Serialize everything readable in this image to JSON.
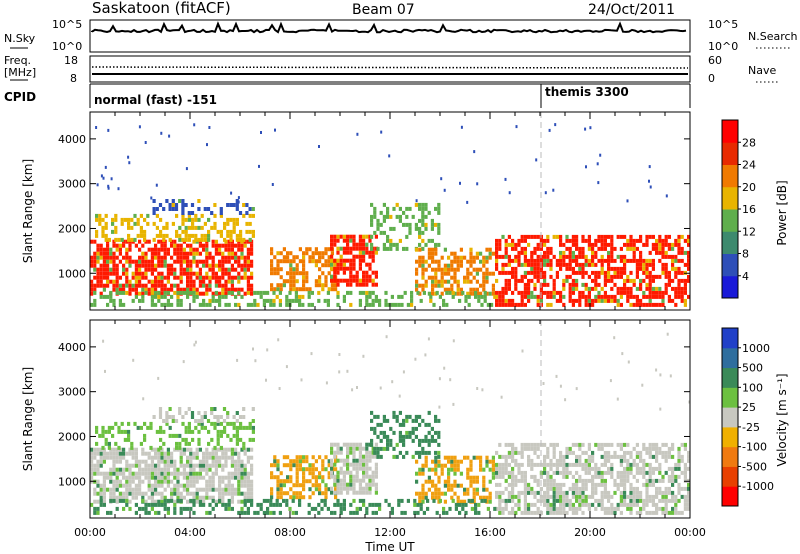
{
  "header": {
    "station": "Saskatoon (fitACF)",
    "beam": "Beam 07",
    "date": "24/Oct/2011"
  },
  "status_panels": {
    "nsky": {
      "label": "N.Sky",
      "ticks": [
        "10^5",
        "10^0"
      ],
      "right_ticks": [
        "10^5",
        "10^0"
      ],
      "right_label": "N.Search"
    },
    "freq": {
      "label_line1": "Freq.",
      "label_line2": "[MHz]",
      "ticks": [
        "18",
        "8"
      ],
      "right_ticks": [
        "60",
        "0"
      ],
      "right_label": "Nave"
    },
    "cpid": {
      "label": "CPID",
      "modes": [
        "normal (fast) -151",
        "themis 3300"
      ]
    }
  },
  "chart_data": [
    {
      "type": "heatmap",
      "quantity": "Power",
      "ylabel": "Slant Range [km]",
      "xlabel": "",
      "ylim": [
        180,
        4600
      ],
      "yticks": [
        1000,
        2000,
        3000,
        4000
      ],
      "xlim_hours": [
        0,
        24
      ],
      "colorbar": {
        "label": "Power [dB]",
        "range": [
          0,
          32
        ],
        "ticks": [
          "4",
          "8",
          "12",
          "16",
          "20",
          "24",
          "28"
        ],
        "colors": [
          "#1a1ad8",
          "#2e4fb8",
          "#3d8a6e",
          "#5fae4c",
          "#e8b400",
          "#f07a00",
          "#e82a00",
          "#ff0000"
        ]
      }
    },
    {
      "type": "heatmap",
      "quantity": "Velocity",
      "ylabel": "Slant Range [km]",
      "xlabel": "Time UT",
      "ylim": [
        180,
        4600
      ],
      "yticks": [
        1000,
        2000,
        3000,
        4000
      ],
      "xlim_hours": [
        0,
        24
      ],
      "xticks": [
        "00:00",
        "04:00",
        "08:00",
        "12:00",
        "16:00",
        "20:00",
        "00:00"
      ],
      "colorbar": {
        "label": "Velocity [m s⁻¹]",
        "ticks": [
          "1000",
          "500",
          "100",
          "25",
          "-25",
          "-100",
          "-500",
          "-1000"
        ],
        "colors": [
          "#2040c8",
          "#2f6e9e",
          "#3a8a58",
          "#6cc040",
          "#c8c8c0",
          "#f0b000",
          "#f07a10",
          "#e84000",
          "#ff0000"
        ]
      }
    }
  ],
  "annotations": {
    "mode_change_hour": 18.0
  }
}
